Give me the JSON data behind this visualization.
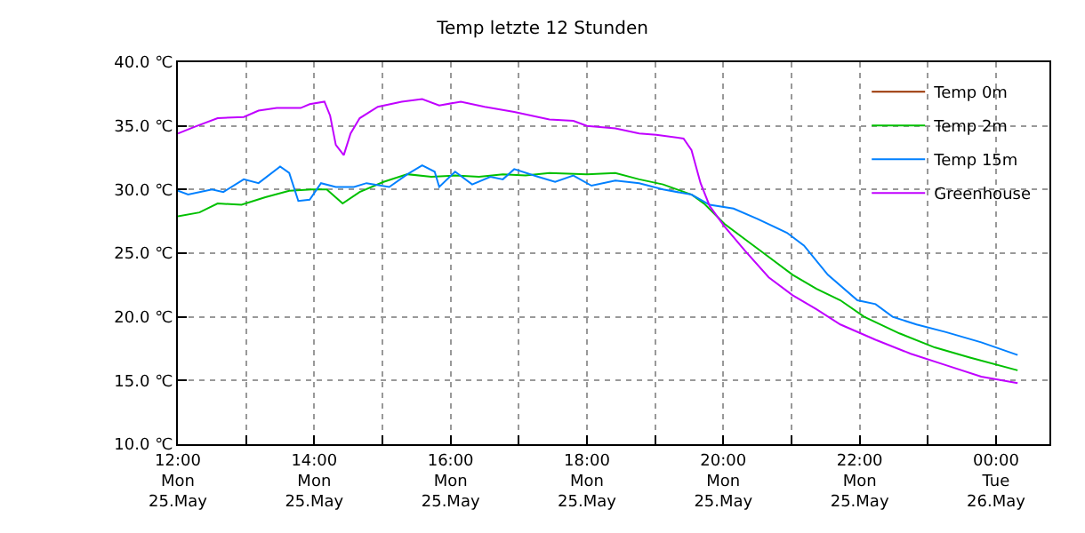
{
  "chart_data": {
    "type": "line",
    "title": "Temp letzte 12 Stunden",
    "xlim": [
      "--05-25T12:00",
      "--05-26T00:47"
    ],
    "ylim": [
      10,
      40
    ],
    "xticks": [
      {
        "value": "--05-25T12:00",
        "label": "12:00\nMon\n25.May"
      },
      {
        "value": "--05-25T13:00",
        "label": null
      },
      {
        "value": "--05-25T14:00",
        "label": "14:00\nMon\n25.May"
      },
      {
        "value": "--05-25T15:00",
        "label": null
      },
      {
        "value": "--05-25T16:00",
        "label": "16:00\nMon\n25.May"
      },
      {
        "value": "--05-25T17:00",
        "label": null
      },
      {
        "value": "--05-25T18:00",
        "label": "18:00\nMon\n25.May"
      },
      {
        "value": "--05-25T19:00",
        "label": null
      },
      {
        "value": "--05-25T20:00",
        "label": "20:00\nMon\n25.May"
      },
      {
        "value": "--05-25T21:00",
        "label": null
      },
      {
        "value": "--05-25T22:00",
        "label": "22:00\nMon\n25.May"
      },
      {
        "value": "--05-25T23:00",
        "label": null
      },
      {
        "value": "--05-26T00:00",
        "label": "00:00\nTue\n26.May"
      }
    ],
    "yticks": [
      {
        "value": 10,
        "label": "10.0 ℃"
      },
      {
        "value": 15,
        "label": "15.0 ℃"
      },
      {
        "value": 20,
        "label": "20.0 ℃"
      },
      {
        "value": 25,
        "label": "25.0 ℃"
      },
      {
        "value": 30,
        "label": "30.0 ℃"
      },
      {
        "value": 35,
        "label": "35.0 ℃"
      },
      {
        "value": 40,
        "label": "40.0 ℃"
      }
    ],
    "grid": true,
    "legend": "top right",
    "marker": "none",
    "line_style": "solid",
    "series": [
      {
        "name": "Temp 0m",
        "color": "#993300",
        "values": [
          null
        ]
      },
      {
        "name": "Temp 2m",
        "color": "#00c000",
        "x": [
          "--05-25T12:00",
          "--05-25T12:19",
          "--05-25T12:35",
          "--05-25T12:56",
          "--05-25T13:17",
          "--05-25T13:38",
          "--05-25T13:58",
          "--05-25T14:11",
          "--05-25T14:25",
          "--05-25T14:40",
          "--05-25T15:01",
          "--05-25T15:22",
          "--05-25T15:43",
          "--05-25T16:04",
          "--05-25T16:25",
          "--05-25T16:46",
          "--05-25T17:06",
          "--05-25T17:27",
          "--05-25T18:00",
          "--05-25T18:25",
          "--05-25T18:46",
          "--05-25T19:07",
          "--05-25T19:32",
          "--05-25T19:43",
          "--05-25T20:01",
          "--05-25T20:19",
          "--05-25T20:40",
          "--05-25T21:01",
          "--05-25T21:22",
          "--05-25T21:43",
          "--05-25T22:04",
          "--05-25T22:35",
          "--05-25T23:06",
          "--05-25T23:37",
          "--05-26T00:19"
        ],
        "values": [
          27.9,
          28.2,
          28.9,
          28.8,
          29.4,
          29.9,
          30.0,
          30.0,
          28.9,
          29.8,
          30.6,
          31.2,
          31.0,
          31.1,
          31.0,
          31.2,
          31.1,
          31.3,
          31.2,
          31.3,
          30.8,
          30.4,
          29.6,
          28.9,
          27.3,
          26.1,
          24.7,
          23.3,
          22.2,
          21.3,
          20.0,
          18.7,
          17.6,
          16.8,
          15.8
        ]
      },
      {
        "name": "Temp 15m",
        "color": "#0080ff",
        "x": [
          "--05-25T12:00",
          "--05-25T12:09",
          "--05-25T12:30",
          "--05-25T12:40",
          "--05-25T12:58",
          "--05-25T13:11",
          "--05-25T13:30",
          "--05-25T13:38",
          "--05-25T13:46",
          "--05-25T13:56",
          "--05-25T14:06",
          "--05-25T14:19",
          "--05-25T14:35",
          "--05-25T14:46",
          "--05-25T15:06",
          "--05-25T15:22",
          "--05-25T15:35",
          "--05-25T15:46",
          "--05-25T15:50",
          "--05-25T16:04",
          "--05-25T16:19",
          "--05-25T16:35",
          "--05-25T16:46",
          "--05-25T16:56",
          "--05-25T17:17",
          "--05-25T17:32",
          "--05-25T17:48",
          "--05-25T18:04",
          "--05-25T18:25",
          "--05-25T18:46",
          "--05-25T19:07",
          "--05-25T19:32",
          "--05-25T19:48",
          "--05-25T20:09",
          "--05-25T20:30",
          "--05-25T20:56",
          "--05-25T21:11",
          "--05-25T21:32",
          "--05-25T21:58",
          "--05-25T22:14",
          "--05-25T22:29",
          "--05-25T22:50",
          "--05-25T23:16",
          "--05-25T23:47",
          "--05-26T00:19"
        ],
        "values": [
          29.9,
          29.6,
          30.0,
          29.8,
          30.8,
          30.5,
          31.8,
          31.3,
          29.1,
          29.2,
          30.5,
          30.2,
          30.2,
          30.5,
          30.2,
          31.2,
          31.9,
          31.4,
          30.2,
          31.4,
          30.4,
          31.0,
          30.8,
          31.6,
          31.0,
          30.6,
          31.1,
          30.3,
          30.7,
          30.5,
          30.0,
          29.6,
          28.8,
          28.5,
          27.7,
          26.6,
          25.6,
          23.3,
          21.3,
          21.0,
          20.0,
          19.4,
          18.8,
          18.0,
          17.0
        ]
      },
      {
        "name": "Greenhouse",
        "color": "#c000ff",
        "x": [
          "--05-25T12:00",
          "--05-25T12:14",
          "--05-25T12:35",
          "--05-25T12:58",
          "--05-25T13:11",
          "--05-25T13:27",
          "--05-25T13:48",
          "--05-25T13:56",
          "--05-25T14:09",
          "--05-25T14:14",
          "--05-25T14:19",
          "--05-25T14:26",
          "--05-25T14:32",
          "--05-25T14:40",
          "--05-25T14:56",
          "--05-25T15:17",
          "--05-25T15:35",
          "--05-25T15:50",
          "--05-25T16:09",
          "--05-25T16:30",
          "--05-25T16:56",
          "--05-25T17:27",
          "--05-25T17:48",
          "--05-25T18:00",
          "--05-25T18:25",
          "--05-25T18:46",
          "--05-25T19:01",
          "--05-25T19:25",
          "--05-25T19:32",
          "--05-25T19:40",
          "--05-25T19:48",
          "--05-25T20:01",
          "--05-25T20:19",
          "--05-25T20:40",
          "--05-25T21:01",
          "--05-25T21:22",
          "--05-25T21:43",
          "--05-25T22:14",
          "--05-25T22:45",
          "--05-25T23:16",
          "--05-25T23:47",
          "--05-26T00:19"
        ],
        "values": [
          34.4,
          34.9,
          35.6,
          35.7,
          36.2,
          36.4,
          36.4,
          36.7,
          36.9,
          35.8,
          33.5,
          32.7,
          34.4,
          35.6,
          36.5,
          36.9,
          37.1,
          36.6,
          36.9,
          36.5,
          36.1,
          35.5,
          35.4,
          35.0,
          34.8,
          34.4,
          34.3,
          34.0,
          33.1,
          30.5,
          28.7,
          27.1,
          25.2,
          23.1,
          21.7,
          20.6,
          19.4,
          18.2,
          17.1,
          16.2,
          15.3,
          14.8
        ]
      }
    ]
  }
}
